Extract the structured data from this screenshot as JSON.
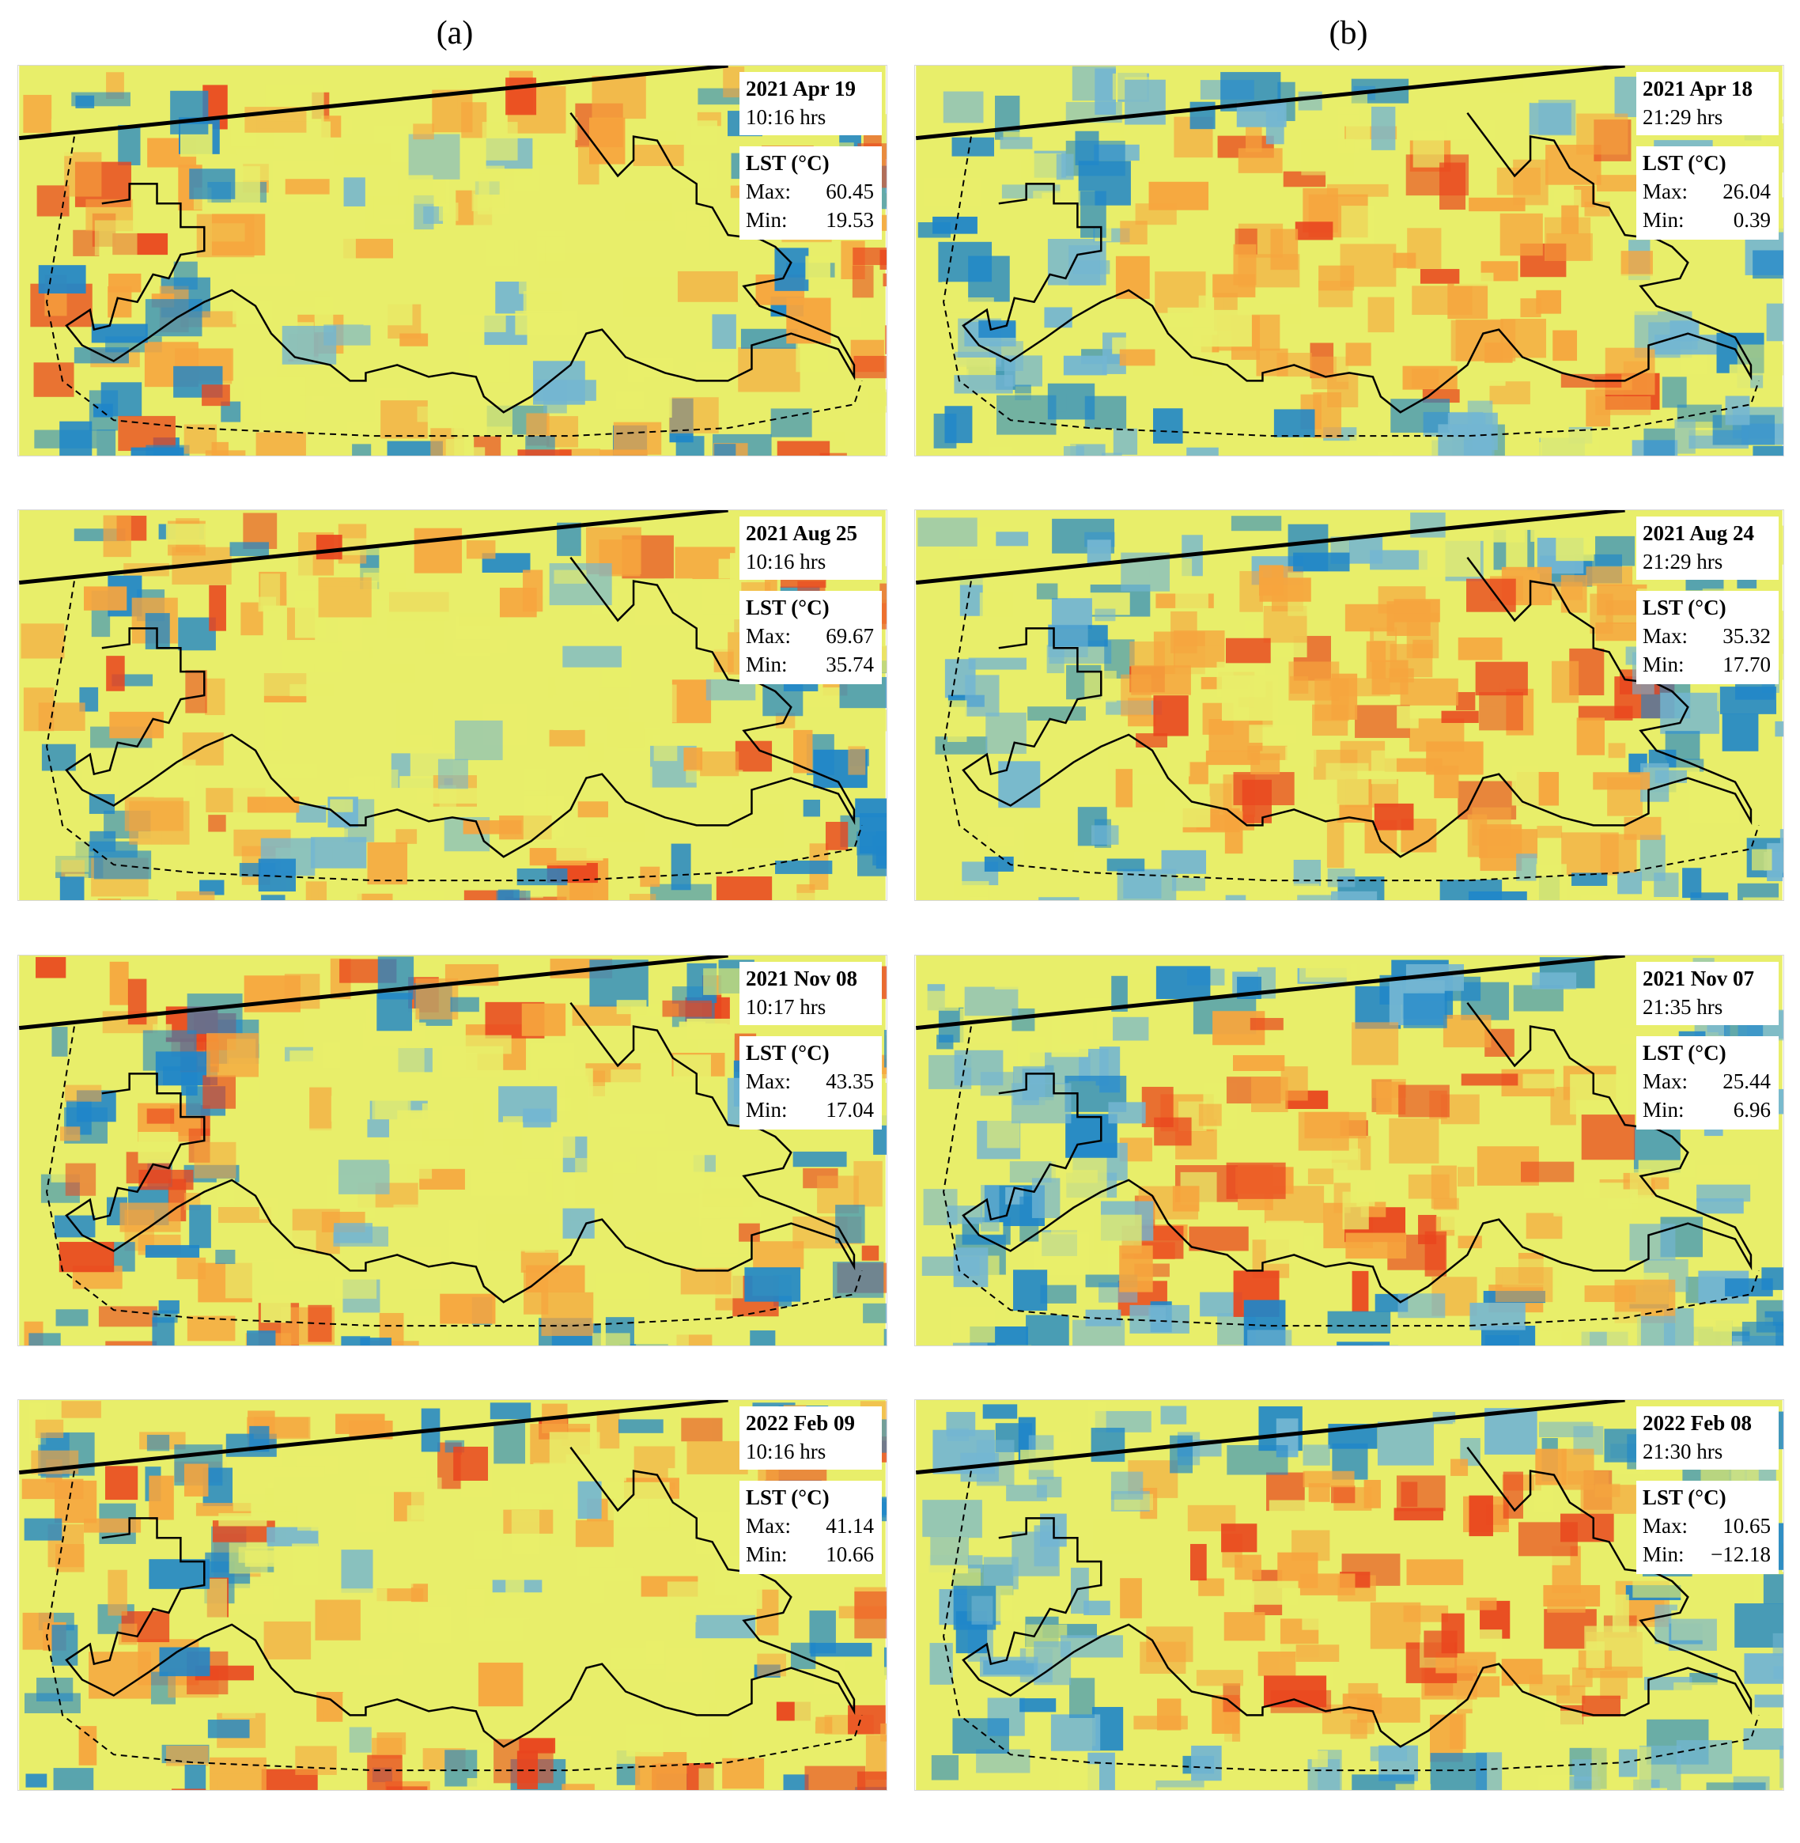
{
  "columns": [
    {
      "label": "(a)"
    },
    {
      "label": "(b)"
    }
  ],
  "legend_colors": {
    "cool": "#1f86c9",
    "cool_mid": "#73b6d2",
    "neutral": "#e8ee6a",
    "warm": "#f6a53e",
    "hot": "#e9451e",
    "boundary": "#000000"
  },
  "panels": [
    {
      "date": "2021 Apr 19",
      "time": "10:16 hrs",
      "lst_title": "LST (°C)",
      "max_label": "Max:",
      "max": "60.45",
      "min_label": "Min:",
      "min": "19.53"
    },
    {
      "date": "2021 Apr 18",
      "time": "21:29 hrs",
      "lst_title": "LST (°C)",
      "max_label": "Max:",
      "max": "26.04",
      "min_label": "Min:",
      "min": "0.39"
    },
    {
      "date": "2021 Aug 25",
      "time": "10:16 hrs",
      "lst_title": "LST (°C)",
      "max_label": "Max:",
      "max": "69.67",
      "min_label": "Min:",
      "min": "35.74"
    },
    {
      "date": "2021 Aug 24",
      "time": "21:29 hrs",
      "lst_title": "LST (°C)",
      "max_label": "Max:",
      "max": "35.32",
      "min_label": "Min:",
      "min": "17.70"
    },
    {
      "date": "2021 Nov 08",
      "time": "10:17 hrs",
      "lst_title": "LST (°C)",
      "max_label": "Max:",
      "max": "43.35",
      "min_label": "Min:",
      "min": "17.04"
    },
    {
      "date": "2021 Nov 07",
      "time": "21:35 hrs",
      "lst_title": "LST (°C)",
      "max_label": "Max:",
      "max": "25.44",
      "min_label": "Min:",
      "min": "6.96"
    },
    {
      "date": "2022 Feb 09",
      "time": "10:16 hrs",
      "lst_title": "LST (°C)",
      "max_label": "Max:",
      "max": "41.14",
      "min_label": "Min:",
      "min": "10.66"
    },
    {
      "date": "2022 Feb 08",
      "time": "21:30 hrs",
      "lst_title": "LST (°C)",
      "max_label": "Max:",
      "max": "10.65",
      "min_label": "Min:",
      "min": "−12.18"
    }
  ]
}
